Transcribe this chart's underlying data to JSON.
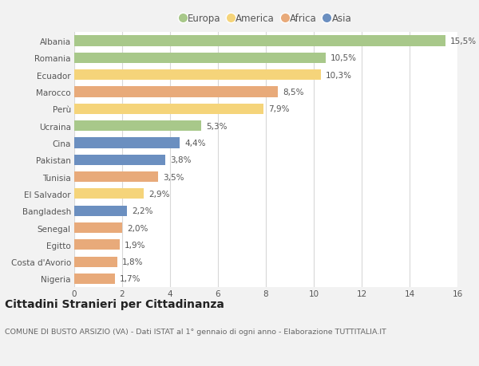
{
  "countries": [
    "Albania",
    "Romania",
    "Ecuador",
    "Marocco",
    "Perù",
    "Ucraina",
    "Cina",
    "Pakistan",
    "Tunisia",
    "El Salvador",
    "Bangladesh",
    "Senegal",
    "Egitto",
    "Costa d'Avorio",
    "Nigeria"
  ],
  "values": [
    15.5,
    10.5,
    10.3,
    8.5,
    7.9,
    5.3,
    4.4,
    3.8,
    3.5,
    2.9,
    2.2,
    2.0,
    1.9,
    1.8,
    1.7
  ],
  "labels": [
    "15,5%",
    "10,5%",
    "10,3%",
    "8,5%",
    "7,9%",
    "5,3%",
    "4,4%",
    "3,8%",
    "3,5%",
    "2,9%",
    "2,2%",
    "2,0%",
    "1,9%",
    "1,8%",
    "1,7%"
  ],
  "continents": [
    "Europa",
    "Europa",
    "America",
    "Africa",
    "America",
    "Europa",
    "Asia",
    "Asia",
    "Africa",
    "America",
    "Asia",
    "Africa",
    "Africa",
    "Africa",
    "Africa"
  ],
  "colors": {
    "Europa": "#a8c88a",
    "America": "#f5d47a",
    "Africa": "#e8aa7a",
    "Asia": "#6b8fc0"
  },
  "legend_order": [
    "Europa",
    "America",
    "Africa",
    "Asia"
  ],
  "background_color": "#f2f2f2",
  "plot_bg_color": "#ffffff",
  "title": "Cittadini Stranieri per Cittadinanza",
  "subtitle": "COMUNE DI BUSTO ARSIZIO (VA) - Dati ISTAT al 1° gennaio di ogni anno - Elaborazione TUTTITALIA.IT",
  "xlim": [
    0,
    16
  ],
  "xticks": [
    0,
    2,
    4,
    6,
    8,
    10,
    12,
    14,
    16
  ],
  "grid_color": "#d8d8d8",
  "bar_height": 0.62,
  "label_fontsize": 7.5,
  "tick_fontsize": 7.5,
  "ytick_fontsize": 7.5,
  "title_fontsize": 10,
  "subtitle_fontsize": 6.8
}
